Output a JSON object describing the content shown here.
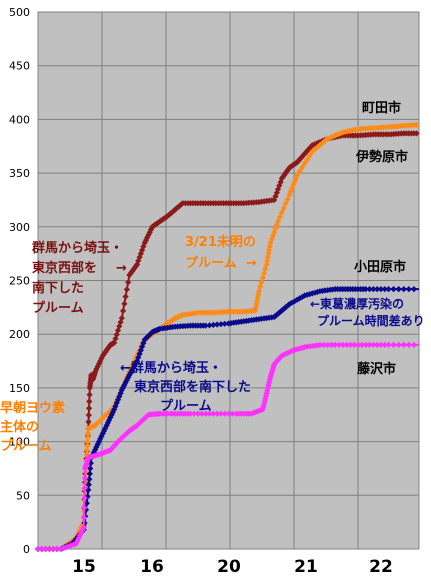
{
  "chart_data": {
    "type": "line",
    "x_tick_labels": [
      "15",
      "16",
      "20",
      "21",
      "22"
    ],
    "ylim": [
      0,
      500
    ],
    "y_ticks": [
      0,
      50,
      100,
      150,
      200,
      250,
      300,
      350,
      400,
      450,
      500
    ],
    "grid": true,
    "colors": {
      "plot_bg": "#c0c0c0",
      "machida": "#8b1a1a",
      "isehara": "#ff8c1a",
      "odawara": "#0a0a8c",
      "fujisawa": "#ff33ff"
    },
    "series": [
      {
        "name": "町田市",
        "color": "#8b1a1a",
        "points": [
          [
            0,
            0
          ],
          [
            0.3,
            0
          ],
          [
            0.5,
            8
          ],
          [
            0.6,
            22
          ],
          [
            0.62,
            70
          ],
          [
            0.66,
            112
          ],
          [
            0.68,
            150
          ],
          [
            0.7,
            162
          ],
          [
            0.72,
            158
          ],
          [
            0.75,
            165
          ],
          [
            0.85,
            180
          ],
          [
            0.95,
            190
          ],
          [
            1.0,
            192
          ],
          [
            1.1,
            215
          ],
          [
            1.2,
            255
          ],
          [
            1.3,
            265
          ],
          [
            1.4,
            285
          ],
          [
            1.5,
            300
          ],
          [
            1.6,
            305
          ],
          [
            1.7,
            310
          ],
          [
            1.8,
            316
          ],
          [
            1.9,
            322
          ],
          [
            2.1,
            322
          ],
          [
            2.3,
            322
          ],
          [
            2.5,
            322
          ],
          [
            2.7,
            322
          ],
          [
            2.9,
            323
          ],
          [
            3.1,
            325
          ],
          [
            3.2,
            345
          ],
          [
            3.3,
            355
          ],
          [
            3.4,
            360
          ],
          [
            3.5,
            368
          ],
          [
            3.6,
            376
          ],
          [
            3.8,
            382
          ],
          [
            4.0,
            385
          ],
          [
            4.2,
            385
          ],
          [
            4.4,
            386
          ],
          [
            4.6,
            386
          ],
          [
            4.8,
            387
          ],
          [
            5.0,
            387
          ]
        ]
      },
      {
        "name": "伊勢原市",
        "color": "#ff8c1a",
        "points": [
          [
            0,
            0
          ],
          [
            0.3,
            0
          ],
          [
            0.5,
            10
          ],
          [
            0.6,
            25
          ],
          [
            0.62,
            55
          ],
          [
            0.64,
            88
          ],
          [
            0.66,
            112
          ],
          [
            0.75,
            115
          ],
          [
            0.85,
            122
          ],
          [
            1.0,
            132
          ],
          [
            1.1,
            148
          ],
          [
            1.2,
            165
          ],
          [
            1.3,
            180
          ],
          [
            1.4,
            195
          ],
          [
            1.5,
            200
          ],
          [
            1.6,
            205
          ],
          [
            1.7,
            210
          ],
          [
            1.8,
            215
          ],
          [
            1.9,
            218
          ],
          [
            2.1,
            220
          ],
          [
            2.3,
            220
          ],
          [
            2.5,
            221
          ],
          [
            2.7,
            221
          ],
          [
            2.85,
            222
          ],
          [
            2.9,
            240
          ],
          [
            3.0,
            265
          ],
          [
            3.05,
            285
          ],
          [
            3.15,
            305
          ],
          [
            3.3,
            330
          ],
          [
            3.4,
            348
          ],
          [
            3.6,
            370
          ],
          [
            3.8,
            382
          ],
          [
            4.0,
            388
          ],
          [
            4.2,
            391
          ],
          [
            4.4,
            392
          ],
          [
            4.6,
            393
          ],
          [
            4.8,
            394
          ],
          [
            5.0,
            395
          ]
        ]
      },
      {
        "name": "小田原市",
        "color": "#0a0a8c",
        "points": [
          [
            0,
            0
          ],
          [
            0.3,
            0
          ],
          [
            0.45,
            5
          ],
          [
            0.6,
            18
          ],
          [
            0.66,
            55
          ],
          [
            0.7,
            85
          ],
          [
            0.8,
            100
          ],
          [
            0.9,
            115
          ],
          [
            1.0,
            130
          ],
          [
            1.1,
            148
          ],
          [
            1.2,
            162
          ],
          [
            1.3,
            175
          ],
          [
            1.4,
            195
          ],
          [
            1.5,
            202
          ],
          [
            1.6,
            205
          ],
          [
            1.8,
            207
          ],
          [
            2.0,
            208
          ],
          [
            2.2,
            208
          ],
          [
            2.5,
            210
          ],
          [
            2.7,
            212
          ],
          [
            2.9,
            214
          ],
          [
            3.1,
            216
          ],
          [
            3.2,
            222
          ],
          [
            3.3,
            228
          ],
          [
            3.5,
            236
          ],
          [
            3.7,
            240
          ],
          [
            3.9,
            242
          ],
          [
            4.1,
            242
          ],
          [
            4.3,
            242
          ],
          [
            4.6,
            242
          ],
          [
            5.0,
            242
          ]
        ]
      },
      {
        "name": "藤沢市",
        "color": "#ff33ff",
        "points": [
          [
            0,
            0
          ],
          [
            0.3,
            0
          ],
          [
            0.5,
            5
          ],
          [
            0.6,
            20
          ],
          [
            0.62,
            75
          ],
          [
            0.66,
            85
          ],
          [
            0.8,
            88
          ],
          [
            0.95,
            92
          ],
          [
            1.05,
            100
          ],
          [
            1.2,
            110
          ],
          [
            1.3,
            115
          ],
          [
            1.45,
            125
          ],
          [
            1.6,
            126
          ],
          [
            1.8,
            126
          ],
          [
            2.0,
            126
          ],
          [
            2.3,
            126
          ],
          [
            2.6,
            126
          ],
          [
            2.8,
            126
          ],
          [
            2.95,
            130
          ],
          [
            3.0,
            145
          ],
          [
            3.05,
            160
          ],
          [
            3.1,
            172
          ],
          [
            3.2,
            180
          ],
          [
            3.35,
            185
          ],
          [
            3.5,
            188
          ],
          [
            3.7,
            190
          ],
          [
            4.0,
            190
          ],
          [
            4.3,
            190
          ],
          [
            4.6,
            190
          ],
          [
            5.0,
            190
          ]
        ]
      }
    ],
    "annotations": {
      "machida": "町田市",
      "isehara": "伊勢原市",
      "odawara": "小田原市",
      "fujisawa": "藤沢市",
      "gunma_upper": [
        "群馬から埼玉・",
        "東京西部を",
        "南下した",
        "プルーム"
      ],
      "march21": [
        "3/21未明の",
        "プルーム"
      ],
      "higashikatsushika": [
        "←東葛濃厚汚染の",
        "プルーム時間差あり"
      ],
      "gunma_lower": [
        "←群馬から埼玉・",
        "東京西部を南下した",
        "プルーム"
      ],
      "iodine": [
        "早朝ヨウ素",
        "主体の",
        "プルーム"
      ]
    }
  }
}
